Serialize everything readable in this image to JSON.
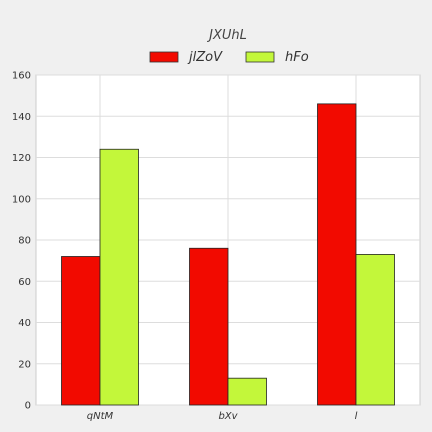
{
  "chart_data": {
    "type": "bar",
    "title": "JXUhL",
    "categories": [
      "qNtM",
      "bXv",
      "l"
    ],
    "series": [
      {
        "name": "jlZoV",
        "values": [
          72,
          76,
          146
        ],
        "color": "#f20a00"
      },
      {
        "name": "hFo",
        "values": [
          124,
          13,
          73
        ],
        "color": "#c3f73a"
      }
    ],
    "ylim": [
      0,
      160
    ],
    "yticks": [
      0,
      20,
      40,
      60,
      80,
      100,
      120,
      140,
      160
    ],
    "grid": true,
    "legend_position": "top-center",
    "background": "#f0f0f0",
    "plot_background": "#ffffff"
  }
}
